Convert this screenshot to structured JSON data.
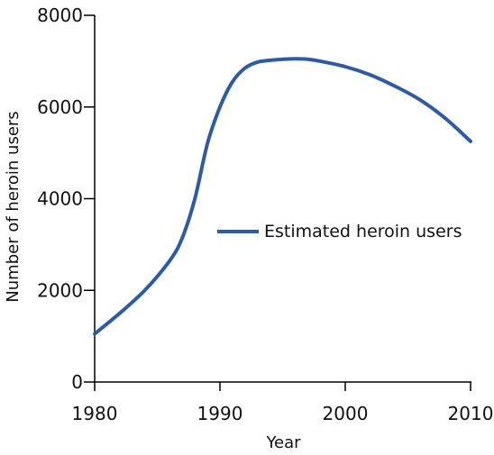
{
  "chart_data": {
    "type": "line",
    "xlabel": "Year",
    "ylabel": "Number of heroin users",
    "xlim": [
      1980,
      2010
    ],
    "ylim": [
      0,
      8000
    ],
    "x_ticks": [
      1980,
      1990,
      2000,
      2010
    ],
    "y_ticks": [
      0,
      2000,
      4000,
      6000,
      8000
    ],
    "grid": false,
    "legend_position": "center-right",
    "series": [
      {
        "name": "Estimated heroin users",
        "color": "#2e5c9e",
        "x": [
          1980,
          1982,
          1984,
          1986,
          1987,
          1988,
          1989,
          1990,
          1991,
          1992,
          1993,
          1994,
          1995,
          1996,
          1997,
          1998,
          2000,
          2002,
          2004,
          2006,
          2008,
          2010
        ],
        "values": [
          1050,
          1500,
          2000,
          2650,
          3150,
          4000,
          5200,
          6000,
          6550,
          6850,
          6980,
          7020,
          7040,
          7050,
          7040,
          7000,
          6880,
          6700,
          6450,
          6150,
          5750,
          5250
        ]
      }
    ]
  }
}
